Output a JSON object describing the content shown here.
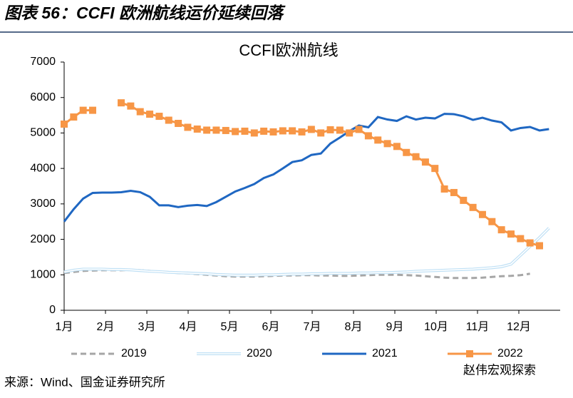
{
  "header": {
    "title": "图表 56：CCFI 欧洲航线运价延续回落"
  },
  "chart_data": {
    "type": "line",
    "title": "CCFI欧洲航线",
    "x": [
      1,
      1.23,
      1.46,
      1.69,
      1.92,
      2.15,
      2.38,
      2.61,
      2.84,
      3.07,
      3.3,
      3.53,
      3.76,
      3.99,
      4.22,
      4.45,
      4.68,
      4.91,
      5.14,
      5.37,
      5.6,
      5.83,
      6.06,
      6.29,
      6.52,
      6.75,
      6.98,
      7.21,
      7.44,
      7.67,
      7.9,
      8.13,
      8.36,
      8.59,
      8.82,
      9.05,
      9.28,
      9.51,
      9.74,
      9.97,
      10.2,
      10.43,
      10.66,
      10.89,
      11.12,
      11.35,
      11.58,
      11.81,
      12.04,
      12.27,
      12.5,
      12.73
    ],
    "xlim": [
      1,
      13
    ],
    "xticks": [
      {
        "value": 1,
        "label": "1月"
      },
      {
        "value": 2,
        "label": "2月"
      },
      {
        "value": 3,
        "label": "3月"
      },
      {
        "value": 4,
        "label": "4月"
      },
      {
        "value": 5,
        "label": "5月"
      },
      {
        "value": 6,
        "label": "6月"
      },
      {
        "value": 7,
        "label": "7月"
      },
      {
        "value": 8,
        "label": "8月"
      },
      {
        "value": 9,
        "label": "9月"
      },
      {
        "value": 10,
        "label": "10月"
      },
      {
        "value": 11,
        "label": "11月"
      },
      {
        "value": 12,
        "label": "12月"
      }
    ],
    "ylim": [
      0,
      7000
    ],
    "yticks": [
      0,
      1000,
      2000,
      3000,
      4000,
      5000,
      6000,
      7000
    ],
    "series": [
      {
        "name": "2019",
        "color": "#a6a6a6",
        "style": "dash",
        "values": [
          1050,
          1080,
          1110,
          1120,
          1130,
          1130,
          1130,
          1140,
          1130,
          1110,
          1090,
          1070,
          1050,
          1040,
          1020,
          1000,
          980,
          960,
          950,
          950,
          950,
          960,
          970,
          980,
          980,
          990,
          990,
          980,
          980,
          970,
          970,
          980,
          990,
          1000,
          1000,
          1000,
          990,
          980,
          960,
          940,
          920,
          910,
          910,
          910,
          920,
          940,
          960,
          970,
          990,
          1030,
          null,
          null
        ]
      },
      {
        "name": "2020",
        "color": "#bfe0f5",
        "style": "double",
        "values": [
          1080,
          1130,
          1160,
          1160,
          1160,
          1150,
          1150,
          1140,
          1120,
          1100,
          1090,
          1070,
          1060,
          1050,
          1040,
          1030,
          1010,
          1000,
          990,
          990,
          990,
          1000,
          1000,
          1010,
          1020,
          1020,
          1030,
          1030,
          1040,
          1040,
          1040,
          1050,
          1050,
          1060,
          1060,
          1070,
          1080,
          1100,
          1110,
          1120,
          1130,
          1140,
          1150,
          1160,
          1180,
          1200,
          1230,
          1300,
          1550,
          1800,
          2050,
          2320
        ]
      },
      {
        "name": "2021",
        "color": "#1f67c2",
        "style": "solid",
        "values": [
          2500,
          2850,
          3150,
          3310,
          3320,
          3320,
          3330,
          3370,
          3330,
          3200,
          2960,
          2960,
          2910,
          2950,
          2970,
          2940,
          3050,
          3200,
          3350,
          3450,
          3560,
          3730,
          3830,
          4000,
          4180,
          4230,
          4380,
          4420,
          4700,
          4870,
          5050,
          5210,
          5160,
          5450,
          5380,
          5340,
          5470,
          5380,
          5430,
          5410,
          5540,
          5530,
          5470,
          5370,
          5430,
          5350,
          5300,
          5070,
          5140,
          5170,
          5070,
          5110
        ]
      },
      {
        "name": "2022",
        "color": "#f79646",
        "style": "solid",
        "marker": "square",
        "values": [
          5250,
          5450,
          5640,
          5640,
          null,
          null,
          5850,
          5760,
          5600,
          5530,
          5470,
          5360,
          5270,
          5160,
          5110,
          5080,
          5080,
          5070,
          5040,
          5050,
          5000,
          5050,
          5030,
          5060,
          5060,
          5030,
          5100,
          5000,
          5090,
          5080,
          5000,
          5100,
          4920,
          4800,
          4700,
          4620,
          4450,
          4330,
          4180,
          4000,
          3420,
          3320,
          3100,
          2900,
          2700,
          2500,
          2270,
          2150,
          2020,
          1900,
          1820,
          null
        ]
      }
    ]
  },
  "footer": {
    "source": "来源：Wind、国金证券研究所",
    "watermark": "赵伟宏观探索"
  }
}
